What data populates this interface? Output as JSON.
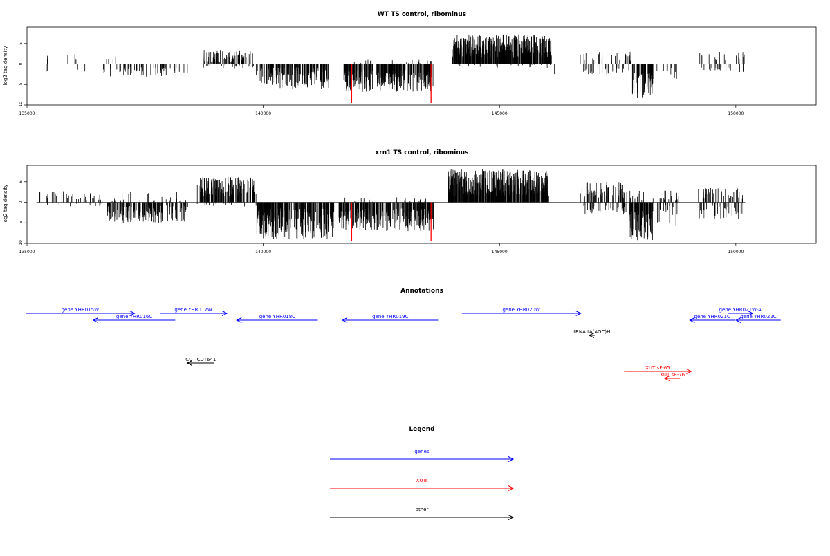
{
  "chart_data": [
    {
      "type": "bar",
      "title": "WT TS control, ribominus",
      "xlabel": "",
      "ylabel": "log2 tag density",
      "xlim": [
        135000,
        151700
      ],
      "ylim": [
        -10,
        9
      ],
      "xticks": [
        135000,
        140000,
        145000,
        150000
      ],
      "yticks": [
        -10,
        -5,
        0,
        5
      ],
      "grid": false,
      "baseline_range": [
        135200,
        150200
      ],
      "color": "#000000",
      "highlight_color": "#ff0000",
      "highlights": [
        {
          "x": 141870,
          "value": -9.5
        },
        {
          "x": 143550,
          "value": -9.5
        }
      ],
      "segments": [
        {
          "start": 135400,
          "end": 135450,
          "sign": 1,
          "min": 1,
          "max": 2,
          "density": 0.03
        },
        {
          "start": 135400,
          "end": 135450,
          "sign": -1,
          "min": 1,
          "max": 2,
          "density": 0.03
        },
        {
          "start": 135800,
          "end": 136100,
          "sign": 1,
          "min": 0.8,
          "max": 2.8,
          "density": 0.015
        },
        {
          "start": 136050,
          "end": 136250,
          "sign": -1,
          "min": 1,
          "max": 2,
          "density": 0.01
        },
        {
          "start": 136600,
          "end": 136900,
          "sign": 1,
          "min": 0.8,
          "max": 2,
          "density": 0.012
        },
        {
          "start": 136600,
          "end": 138500,
          "sign": -1,
          "min": 0.8,
          "max": 3.2,
          "density": 0.03
        },
        {
          "start": 138200,
          "end": 138400,
          "sign": -1,
          "min": 1,
          "max": 3,
          "density": 0.008
        },
        {
          "start": 138700,
          "end": 139800,
          "sign": 1,
          "min": 0.5,
          "max": 3.3,
          "density": 0.08
        },
        {
          "start": 138700,
          "end": 139800,
          "sign": -1,
          "min": 0.3,
          "max": 1.2,
          "density": 0.02
        },
        {
          "start": 139850,
          "end": 141400,
          "sign": -1,
          "min": 0.8,
          "max": 6,
          "density": 0.11
        },
        {
          "start": 141700,
          "end": 143600,
          "sign": -1,
          "min": 1.5,
          "max": 7,
          "density": 0.15
        },
        {
          "start": 141700,
          "end": 143600,
          "sign": 1,
          "min": 0.2,
          "max": 1,
          "density": 0.01
        },
        {
          "start": 144000,
          "end": 146100,
          "sign": 1,
          "min": 1.5,
          "max": 7.2,
          "density": 0.22
        },
        {
          "start": 144000,
          "end": 146100,
          "sign": -1,
          "min": 0.2,
          "max": 1,
          "density": 0.01
        },
        {
          "start": 146150,
          "end": 146250,
          "sign": -1,
          "min": 1,
          "max": 2.5,
          "density": 0.01
        },
        {
          "start": 146700,
          "end": 147800,
          "sign": 1,
          "min": 0.8,
          "max": 3,
          "density": 0.025
        },
        {
          "start": 146700,
          "end": 147800,
          "sign": -1,
          "min": 0.8,
          "max": 2.5,
          "density": 0.025
        },
        {
          "start": 147800,
          "end": 148250,
          "sign": -1,
          "min": 2,
          "max": 8.5,
          "density": 0.14
        },
        {
          "start": 148300,
          "end": 148800,
          "sign": -1,
          "min": 0.8,
          "max": 4,
          "density": 0.02
        },
        {
          "start": 149200,
          "end": 150200,
          "sign": 1,
          "min": 0.8,
          "max": 3,
          "density": 0.02
        },
        {
          "start": 149200,
          "end": 150200,
          "sign": -1,
          "min": 0.8,
          "max": 2,
          "density": 0.02
        }
      ]
    },
    {
      "type": "bar",
      "title": "xrn1 TS control, ribominus",
      "xlabel": "",
      "ylabel": "log2 tag density",
      "xlim": [
        135000,
        151700
      ],
      "ylim": [
        -10,
        9
      ],
      "xticks": [
        135000,
        140000,
        145000,
        150000
      ],
      "yticks": [
        -10,
        -5,
        0,
        5
      ],
      "grid": false,
      "baseline_range": [
        135200,
        150200
      ],
      "color": "#000000",
      "highlight_color": "#ff0000",
      "highlights": [
        {
          "x": 141870,
          "value": -9.5
        },
        {
          "x": 143550,
          "value": -9.5
        }
      ],
      "segments": [
        {
          "start": 135250,
          "end": 135350,
          "sign": 1,
          "min": 1,
          "max": 2.8,
          "density": 0.02
        },
        {
          "start": 135400,
          "end": 136600,
          "sign": 1,
          "min": 0.5,
          "max": 2.8,
          "density": 0.03
        },
        {
          "start": 135400,
          "end": 136600,
          "sign": -1,
          "min": 0.3,
          "max": 1,
          "density": 0.01
        },
        {
          "start": 136700,
          "end": 138400,
          "sign": -1,
          "min": 0.8,
          "max": 5,
          "density": 0.1
        },
        {
          "start": 136700,
          "end": 138400,
          "sign": 1,
          "min": 0.3,
          "max": 2.5,
          "density": 0.015
        },
        {
          "start": 138600,
          "end": 139850,
          "sign": 1,
          "min": 1.5,
          "max": 6.2,
          "density": 0.12
        },
        {
          "start": 138600,
          "end": 139850,
          "sign": -1,
          "min": 0.3,
          "max": 1,
          "density": 0.01
        },
        {
          "start": 139850,
          "end": 141500,
          "sign": -1,
          "min": 1.5,
          "max": 9,
          "density": 0.16
        },
        {
          "start": 141600,
          "end": 143600,
          "sign": -1,
          "min": 1.5,
          "max": 7,
          "density": 0.16
        },
        {
          "start": 141600,
          "end": 143600,
          "sign": 1,
          "min": 0.3,
          "max": 1.3,
          "density": 0.01
        },
        {
          "start": 143900,
          "end": 146050,
          "sign": 1,
          "min": 1.5,
          "max": 8,
          "density": 0.22
        },
        {
          "start": 146700,
          "end": 147700,
          "sign": 1,
          "min": 0.8,
          "max": 5,
          "density": 0.07
        },
        {
          "start": 146700,
          "end": 147700,
          "sign": -1,
          "min": 0.8,
          "max": 3,
          "density": 0.04
        },
        {
          "start": 147750,
          "end": 148250,
          "sign": -1,
          "min": 2,
          "max": 9.3,
          "density": 0.16
        },
        {
          "start": 147750,
          "end": 148800,
          "sign": 1,
          "min": 0.5,
          "max": 3,
          "density": 0.03
        },
        {
          "start": 148300,
          "end": 148800,
          "sign": -1,
          "min": 0.8,
          "max": 6,
          "density": 0.03
        },
        {
          "start": 149200,
          "end": 150200,
          "sign": 1,
          "min": 0.8,
          "max": 3.5,
          "density": 0.04
        },
        {
          "start": 149200,
          "end": 150200,
          "sign": -1,
          "min": 0.8,
          "max": 4,
          "density": 0.04
        }
      ]
    }
  ],
  "annotations": {
    "title": "Annotations",
    "items": [
      {
        "label": "gene YHR015W",
        "start": 134950,
        "end": 138850,
        "dir": "right",
        "color": "#0000ff",
        "track": 0
      },
      {
        "label": "gene YHR016C",
        "start": 137370,
        "end": 140300,
        "dir": "left",
        "color": "#0000ff",
        "track": 1
      },
      {
        "label": "gene YHR017W",
        "start": 139750,
        "end": 142150,
        "dir": "right",
        "color": "#0000ff",
        "track": 0
      },
      {
        "label": "gene YHR018C",
        "start": 142500,
        "end": 145400,
        "dir": "left",
        "color": "#0000ff",
        "track": 1
      },
      {
        "label": "gene YHR019C",
        "start": 146280,
        "end": 149700,
        "dir": "left",
        "color": "#0000ff",
        "track": 1
      },
      {
        "label": "gene YHR020W",
        "start": 150550,
        "end": 154800,
        "dir": "right",
        "color": "#0000ff",
        "track": 0
      },
      {
        "label": "gene YHR021C",
        "start": 158700,
        "end": 160300,
        "dir": "left",
        "color": "#0000ff",
        "track": 1
      },
      {
        "label": "gene YHR021W-A",
        "start": 160050,
        "end": 160950,
        "dir": "right",
        "color": "#0000ff",
        "track": 0
      },
      {
        "label": "gene YHR022C",
        "start": 160350,
        "end": 161950,
        "dir": "left",
        "color": "#0000ff",
        "track": 1
      },
      {
        "label": "tRNA tA(AGC)H",
        "start": 155100,
        "end": 155300,
        "dir": "left",
        "color": "#000000",
        "track": 2
      },
      {
        "label": "CUT CUT641",
        "start": 140730,
        "end": 141700,
        "dir": "left",
        "color": "#000000",
        "track": 4
      },
      {
        "label": "XUT sF-65",
        "start": 156350,
        "end": 158750,
        "dir": "right",
        "color": "#ff0000",
        "track": 5
      },
      {
        "label": "XUT sR-76",
        "start": 157800,
        "end": 158350,
        "dir": "left",
        "color": "#ff0000",
        "track": 6
      }
    ]
  },
  "legend": {
    "title": "Legend",
    "items": [
      {
        "label": "genes",
        "color": "#0000ff"
      },
      {
        "label": "XUTs",
        "color": "#ff0000"
      },
      {
        "label": "other",
        "color": "#000000"
      }
    ]
  }
}
